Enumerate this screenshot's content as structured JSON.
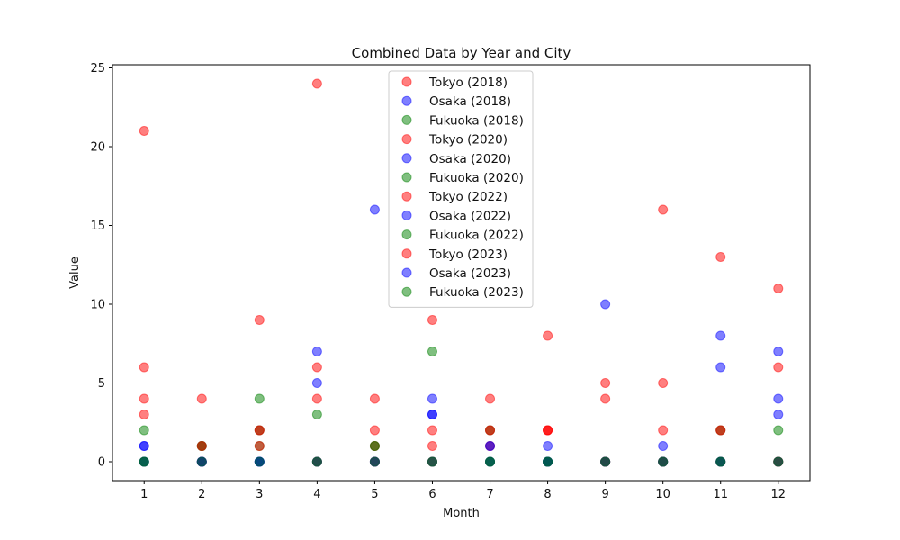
{
  "chart_data": {
    "type": "scatter",
    "title": "Combined Data by Year and City",
    "xlabel": "Month",
    "ylabel": "Value",
    "xlim": [
      0.45,
      12.55
    ],
    "ylim": [
      -1.2,
      25.2
    ],
    "xticks": [
      1,
      2,
      3,
      4,
      5,
      6,
      7,
      8,
      9,
      10,
      11,
      12
    ],
    "yticks": [
      0,
      5,
      10,
      15,
      20,
      25
    ],
    "grid": false,
    "legend_position": "top-center",
    "series": [
      {
        "name": "Tokyo (2018)",
        "color": "#ff0000",
        "x": [
          1,
          2,
          3,
          4,
          5,
          6,
          7,
          8,
          9,
          10,
          11,
          12
        ],
        "y": [
          21,
          4,
          9,
          24,
          4,
          9,
          4,
          8,
          5,
          16,
          13,
          11
        ]
      },
      {
        "name": "Osaka (2018)",
        "color": "#0000ff",
        "x": [
          1,
          2,
          3,
          4,
          5,
          6,
          7,
          8,
          9,
          10,
          11,
          12
        ],
        "y": [
          0,
          0,
          0,
          7,
          16,
          4,
          0,
          0,
          10,
          0,
          8,
          7
        ]
      },
      {
        "name": "Fukuoka (2018)",
        "color": "#008000",
        "x": [
          1,
          2,
          3,
          4,
          5,
          6,
          7,
          8,
          9,
          10,
          11,
          12
        ],
        "y": [
          2,
          0,
          4,
          3,
          0,
          7,
          0,
          0,
          0,
          0,
          0,
          2
        ]
      },
      {
        "name": "Tokyo (2020)",
        "color": "#ff0000",
        "x": [
          1,
          2,
          3,
          4,
          5,
          6,
          7,
          8,
          9,
          10,
          11,
          12
        ],
        "y": [
          6,
          1,
          2,
          6,
          2,
          2,
          2,
          2,
          4,
          5,
          2,
          6
        ]
      },
      {
        "name": "Osaka (2020)",
        "color": "#0000ff",
        "x": [
          1,
          2,
          3,
          4,
          5,
          6,
          7,
          8,
          9,
          10,
          11,
          12
        ],
        "y": [
          1,
          0,
          0,
          5,
          0,
          3,
          1,
          1,
          0,
          1,
          6,
          4
        ]
      },
      {
        "name": "Fukuoka (2020)",
        "color": "#008000",
        "x": [
          1,
          2,
          3,
          4,
          5,
          6,
          7,
          8,
          9,
          10,
          11,
          12
        ],
        "y": [
          0,
          1,
          1,
          0,
          1,
          0,
          2,
          0,
          0,
          0,
          2,
          0
        ]
      },
      {
        "name": "Tokyo (2022)",
        "color": "#ff0000",
        "x": [
          1,
          2,
          3,
          4,
          5,
          6,
          7,
          8,
          9,
          10,
          11,
          12
        ],
        "y": [
          4,
          0,
          1,
          4,
          1,
          1,
          1,
          2,
          0,
          2,
          0,
          0
        ]
      },
      {
        "name": "Osaka (2022)",
        "color": "#0000ff",
        "x": [
          1,
          2,
          3,
          4,
          5,
          6,
          7,
          8,
          9,
          10,
          11,
          12
        ],
        "y": [
          1,
          0,
          0,
          0,
          0,
          3,
          1,
          0,
          0,
          0,
          0,
          3
        ]
      },
      {
        "name": "Fukuoka (2022)",
        "color": "#008000",
        "x": [
          1,
          2,
          3,
          4,
          5,
          6,
          7,
          8,
          9,
          10,
          11,
          12
        ],
        "y": [
          0,
          1,
          2,
          0,
          1,
          0,
          0,
          0,
          0,
          0,
          0,
          0
        ]
      },
      {
        "name": "Tokyo (2023)",
        "color": "#ff0000",
        "x": [
          1,
          2,
          3,
          4,
          5,
          6,
          7,
          8,
          9,
          10,
          11,
          12
        ],
        "y": [
          3,
          1,
          2,
          0,
          0,
          0,
          2,
          2,
          0,
          0,
          2,
          0
        ]
      },
      {
        "name": "Osaka (2023)",
        "color": "#0000ff",
        "x": [
          1,
          2,
          3,
          4,
          5,
          6,
          7,
          8,
          9,
          10,
          11,
          12
        ],
        "y": [
          0,
          0,
          0,
          0,
          0,
          0,
          0,
          0,
          0,
          0,
          0,
          0
        ]
      },
      {
        "name": "Fukuoka (2023)",
        "color": "#008000",
        "x": [
          1,
          2,
          3,
          4,
          5,
          6,
          7,
          8,
          9,
          10,
          11,
          12
        ],
        "y": [
          0,
          0,
          0,
          0,
          0,
          0,
          0,
          0,
          0,
          0,
          0,
          0
        ]
      }
    ]
  }
}
